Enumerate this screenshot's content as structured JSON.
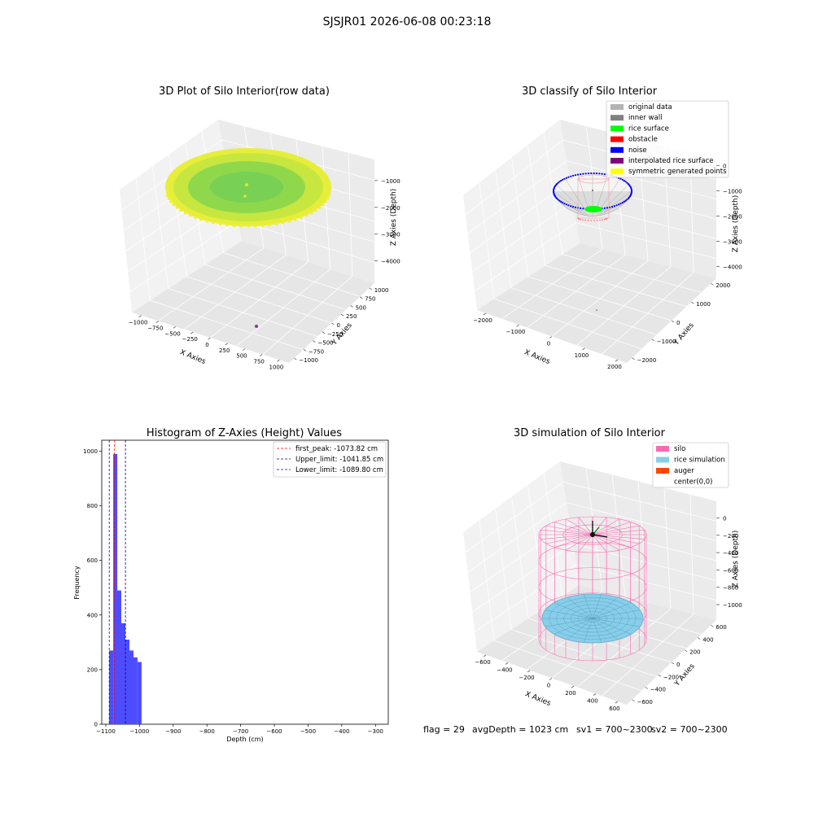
{
  "suptitle": "SJSJR01 2026-06-08 00:23:18",
  "panel_titles": {
    "raw": "3D Plot of Silo Interior(row data)",
    "classify": "3D classify of Silo Interior",
    "hist": "Histogram of Z-Axies (Height) Values",
    "sim": "3D simulation of Silo Interior"
  },
  "axis_labels": {
    "x": "X Axies",
    "y": "Y Axies",
    "z": "Z Axies (Depth)",
    "hist_x": "Depth (cm)",
    "hist_y": "Frequency"
  },
  "ticks": {
    "raw_x": [
      "−1000",
      "−750",
      "−500",
      "−250",
      "0",
      "250",
      "500",
      "750",
      "1000"
    ],
    "raw_y": [
      "1000",
      "750",
      "500",
      "250",
      "0",
      "−250",
      "−500",
      "−750",
      "−1000"
    ],
    "raw_z": [
      "−1000",
      "−2000",
      "−3000",
      "−4000"
    ],
    "cls_x": [
      "−2000",
      "−1000",
      "0",
      "1000",
      "2000"
    ],
    "cls_y": [
      "2000",
      "1000",
      "0",
      "−1000",
      "−2000"
    ],
    "cls_z": [
      "0",
      "−1000",
      "−2000",
      "−3000",
      "−4000"
    ],
    "sim_x": [
      "−600",
      "−400",
      "−200",
      "0",
      "200",
      "400",
      "600"
    ],
    "sim_y": [
      "600",
      "400",
      "200",
      "0",
      "−200",
      "−400",
      "−600"
    ],
    "sim_z": [
      "0",
      "−200",
      "−400",
      "−600",
      "−800",
      "−1000"
    ]
  },
  "colors": {
    "original": "#b3b3b3",
    "inner_wall": "#808080",
    "rice_surface": "#00ff00",
    "obstacle": "#ff0000",
    "noise": "#0000ff",
    "interpolated": "#800080",
    "symmetric": "#ffff00",
    "silo": "#ff69b4",
    "rice_sim": "#87ceeb",
    "auger": "#ff4500",
    "hist_bar": "#4d4dff"
  },
  "classify_legend": [
    {
      "label": "original data",
      "color": "#b3b3b3"
    },
    {
      "label": "inner wall",
      "color": "#808080"
    },
    {
      "label": "rice surface",
      "color": "#00ff00"
    },
    {
      "label": "obstacle",
      "color": "#ff0000"
    },
    {
      "label": "noise",
      "color": "#0000ff"
    },
    {
      "label": "interpolated rice surface",
      "color": "#800080"
    },
    {
      "label": "symmetric generated points",
      "color": "#ffff00"
    }
  ],
  "sim_legend": [
    {
      "label": "silo",
      "color": "#ff69b4"
    },
    {
      "label": "rice simulation",
      "color": "#87ceeb"
    },
    {
      "label": "auger",
      "color": "#ff4500"
    },
    {
      "label": "center(0,0)",
      "color": ""
    }
  ],
  "chart_data": {
    "type": "bar",
    "title": "Histogram of Z-Axies (Height) Values",
    "xlabel": "Depth (cm)",
    "ylabel": "Frequency",
    "xlim": [
      -1112,
      -262
    ],
    "ylim": [
      0,
      1040
    ],
    "xticks": [
      -1100,
      -1000,
      -900,
      -800,
      -700,
      -600,
      -500,
      -400,
      -300
    ],
    "yticks": [
      0,
      200,
      400,
      600,
      800,
      1000
    ],
    "bin_width": 12,
    "bins": [
      {
        "start": -1090,
        "count": 270
      },
      {
        "start": -1078,
        "count": 990
      },
      {
        "start": -1066,
        "count": 490
      },
      {
        "start": -1054,
        "count": 370
      },
      {
        "start": -1042,
        "count": 310
      },
      {
        "start": -1030,
        "count": 270
      },
      {
        "start": -1018,
        "count": 245
      },
      {
        "start": -1006,
        "count": 228
      }
    ],
    "lines": [
      {
        "label": "first_peak: -1073.82 cm",
        "value": -1073.82,
        "color": "#ff0000"
      },
      {
        "label": "Upper_limit: -1041.85 cm",
        "value": -1041.85,
        "color": "#000080"
      },
      {
        "label": "Lower_limit: -1089.80 cm",
        "value": -1089.8,
        "color": "#0000ff"
      }
    ]
  },
  "status": {
    "flag": "flag = 29",
    "avg": "avgDepth = 1023 cm",
    "sv1": "sv1 = 700~2300",
    "sv2": "sv2 = 700~2300"
  }
}
